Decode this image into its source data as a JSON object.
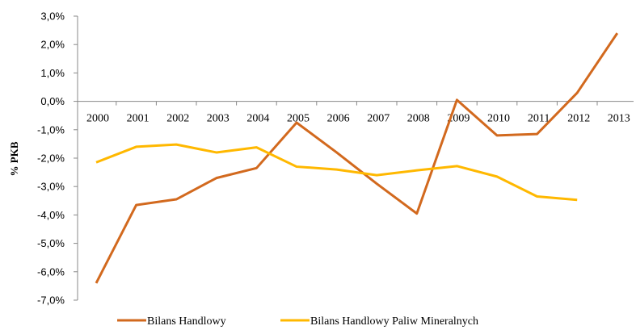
{
  "chart_data": {
    "type": "line",
    "ylabel": "% PKB",
    "xlabel": "",
    "categories": [
      "2000",
      "2001",
      "2002",
      "2003",
      "2004",
      "2005",
      "2006",
      "2007",
      "2008",
      "2009",
      "2010",
      "2011",
      "2012",
      "2013"
    ],
    "ylim": [
      -7.0,
      3.0
    ],
    "ytick_step": 1.0,
    "y_tick_labels": [
      "3,0%",
      "2,0%",
      "1,0%",
      "0,0%",
      "-1,0%",
      "-2,0%",
      "-3,0%",
      "-4,0%",
      "-5,0%",
      "-6,0%",
      "-7,0%"
    ],
    "grid": false,
    "legend_position": "bottom",
    "series": [
      {
        "name": "Bilans Handlowy",
        "color": "#D2691E",
        "values": [
          -6.4,
          -3.65,
          -3.45,
          -2.7,
          -2.35,
          -0.75,
          -1.8,
          -2.9,
          -3.95,
          0.05,
          -1.2,
          -1.15,
          0.3,
          2.4
        ]
      },
      {
        "name": "Bilans Handlowy Paliw Mineralnych",
        "color": "#FFB800",
        "values": [
          -2.15,
          -1.6,
          -1.52,
          -1.8,
          -1.62,
          -2.3,
          -2.4,
          -2.6,
          -2.43,
          -2.28,
          -2.65,
          -3.35,
          -3.47,
          null
        ]
      }
    ]
  }
}
